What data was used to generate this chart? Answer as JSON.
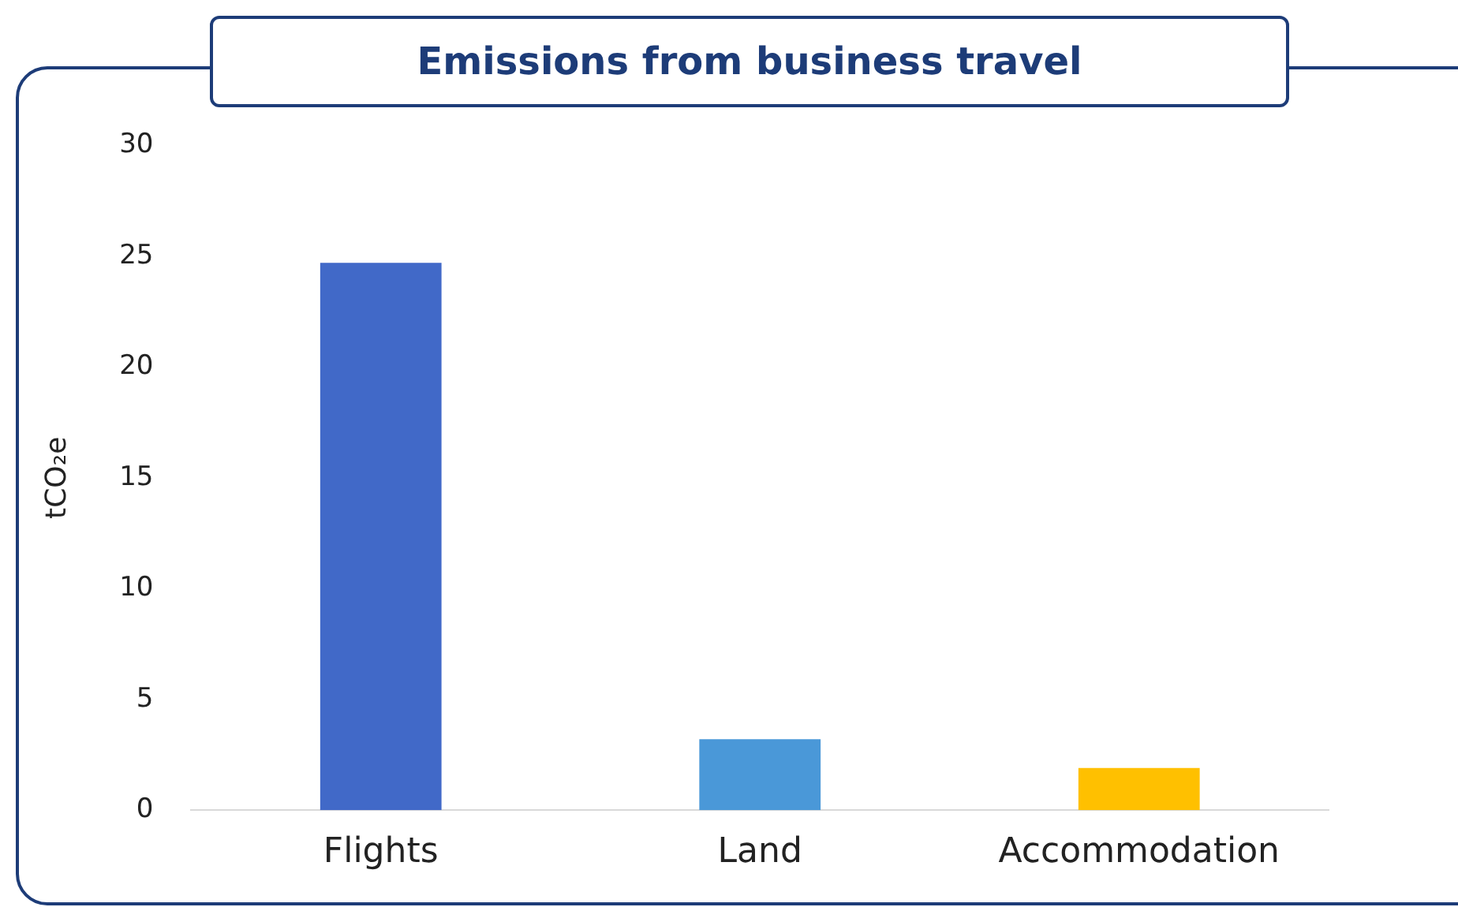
{
  "chart_data": {
    "type": "bar",
    "title": "Emissions from business travel",
    "ylabel": "tCO₂e",
    "categories": [
      "Flights",
      "Land",
      "Accommodation"
    ],
    "values": [
      24.7,
      3.2,
      1.9
    ],
    "colors": [
      "#4169c8",
      "#4a98d8",
      "#ffc000"
    ],
    "ylim": [
      0,
      30
    ],
    "yticks": [
      0,
      5,
      10,
      15,
      20,
      25,
      30
    ],
    "grid": false,
    "legend": false
  }
}
